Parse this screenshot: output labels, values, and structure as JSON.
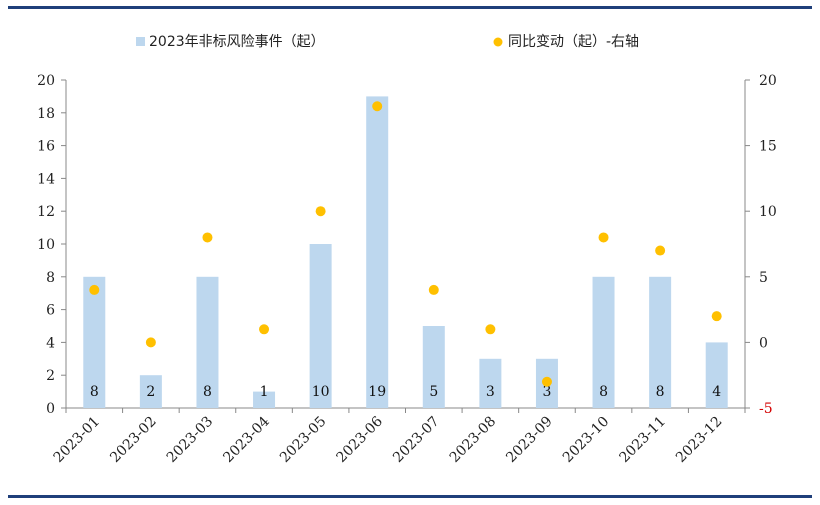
{
  "chart_data": {
    "type": "bar",
    "title": "",
    "categories": [
      "2023-01",
      "2023-02",
      "2023-03",
      "2023-04",
      "2023-05",
      "2023-06",
      "2023-07",
      "2023-08",
      "2023-09",
      "2023-10",
      "2023-11",
      "2023-12"
    ],
    "series": [
      {
        "name": "2023年非标风险事件（起）",
        "type": "bar",
        "axis": "left",
        "color": "#bdd7ee",
        "values": [
          8,
          2,
          8,
          1,
          10,
          19,
          5,
          3,
          3,
          8,
          8,
          4
        ]
      },
      {
        "name": "同比变动（起）-右轴",
        "type": "scatter",
        "axis": "right",
        "color": "#ffc000",
        "values": [
          4,
          0,
          8,
          1,
          10,
          18,
          4,
          1,
          -3,
          8,
          7,
          2
        ]
      }
    ],
    "left_axis": {
      "min": 0,
      "max": 20,
      "step": 2
    },
    "right_axis": {
      "min": -5,
      "max": 20,
      "step": 5,
      "negative_color": "#d40000"
    },
    "xlabel": "",
    "ylabel": "",
    "legend": "top",
    "grid": false,
    "data_labels": true
  }
}
